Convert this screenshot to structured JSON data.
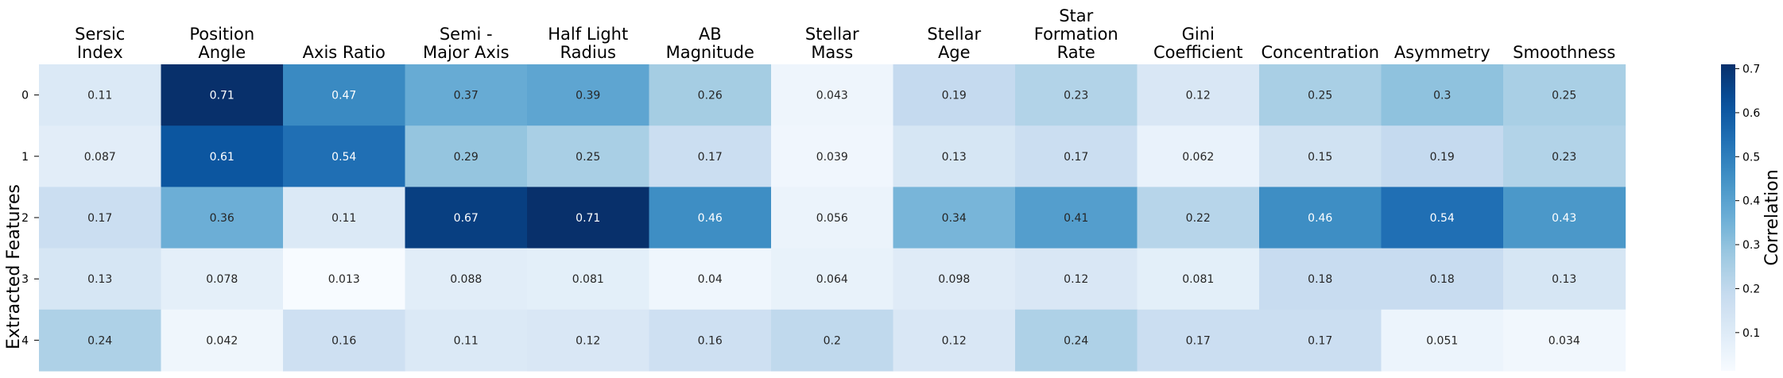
{
  "chart_data": {
    "type": "heatmap",
    "title": "",
    "xlabel": "",
    "ylabel": "Extracted Features",
    "columns": [
      [
        "Sersic",
        "Index"
      ],
      [
        "Position",
        "Angle"
      ],
      [
        "Axis Ratio"
      ],
      [
        "Semi -",
        "Major Axis"
      ],
      [
        "Half Light",
        "Radius"
      ],
      [
        "AB",
        "Magnitude"
      ],
      [
        "Stellar",
        "Mass"
      ],
      [
        "Stellar",
        "Age"
      ],
      [
        "Star",
        "Formation",
        "Rate"
      ],
      [
        "Gini",
        "Coefficient"
      ],
      [
        "Concentration"
      ],
      [
        "Asymmetry"
      ],
      [
        "Smoothness"
      ]
    ],
    "rows": [
      "0",
      "1",
      "2",
      "3",
      "4"
    ],
    "values": [
      [
        0.11,
        0.71,
        0.47,
        0.37,
        0.39,
        0.26,
        0.043,
        0.19,
        0.23,
        0.12,
        0.25,
        0.3,
        0.25
      ],
      [
        0.087,
        0.61,
        0.54,
        0.29,
        0.25,
        0.17,
        0.039,
        0.13,
        0.17,
        0.062,
        0.15,
        0.19,
        0.23
      ],
      [
        0.17,
        0.36,
        0.11,
        0.67,
        0.71,
        0.46,
        0.056,
        0.34,
        0.41,
        0.22,
        0.46,
        0.54,
        0.43
      ],
      [
        0.13,
        0.078,
        0.013,
        0.088,
        0.081,
        0.04,
        0.064,
        0.098,
        0.12,
        0.081,
        0.18,
        0.18,
        0.13
      ],
      [
        0.24,
        0.042,
        0.16,
        0.11,
        0.12,
        0.16,
        0.2,
        0.12,
        0.24,
        0.17,
        0.17,
        0.051,
        0.034
      ]
    ],
    "colormap": "Blues",
    "vmin": 0.013,
    "vmax": 0.71,
    "colorbar": {
      "label": "Correlation",
      "ticks": [
        "0.1",
        "0.2",
        "0.3",
        "0.4",
        "0.5",
        "0.6",
        "0.7"
      ]
    }
  }
}
